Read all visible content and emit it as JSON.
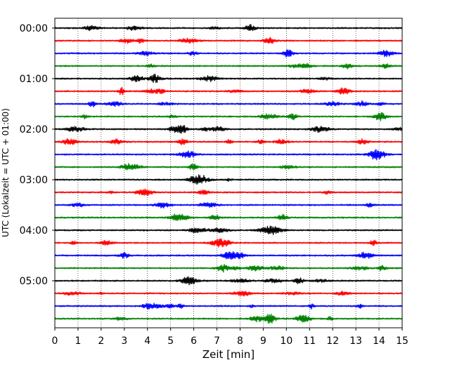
{
  "chart_data": {
    "type": "line",
    "subtype": "helicorder-seismogram",
    "title": "",
    "xlabel": "Zeit  [min]",
    "ylabel": "UTC (Lokalzeit = UTC + 01:00)",
    "xlim": [
      0,
      15
    ],
    "x_ticks": [
      "0",
      "1",
      "2",
      "3",
      "4",
      "5",
      "6",
      "7",
      "8",
      "9",
      "10",
      "11",
      "12",
      "13",
      "14",
      "15"
    ],
    "y_ticks": [
      "00:00",
      "01:00",
      "02:00",
      "03:00",
      "04:00",
      "05:00"
    ],
    "vertical_grid": "dotted, at every minute",
    "traces_per_hour": 4,
    "trace_count": 24,
    "trace_colors": [
      "#000000",
      "#ff0000",
      "#0000ff",
      "#008000"
    ],
    "series": []
  }
}
